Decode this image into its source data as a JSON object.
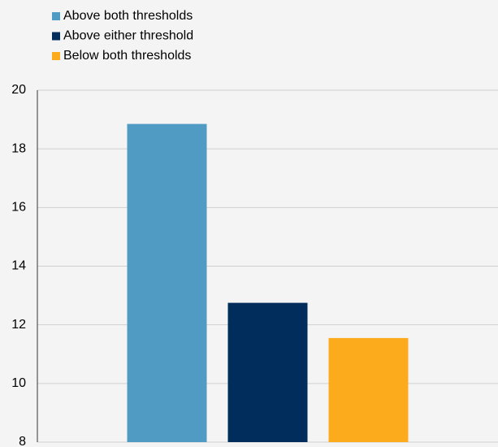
{
  "chart_data": {
    "type": "bar",
    "categories": [
      null
    ],
    "series": [
      {
        "name": "Above both thresholds",
        "color": "#4f9bc4",
        "values": [
          18.85
        ]
      },
      {
        "name": "Above either threshold",
        "color": "#002d5c",
        "values": [
          12.75
        ]
      },
      {
        "name": "Below both thresholds",
        "color": "#fbab1b",
        "values": [
          11.55
        ]
      }
    ],
    "ylim": [
      8,
      20
    ],
    "yticks": [
      8,
      10,
      12,
      14,
      16,
      18,
      20
    ],
    "grid": true,
    "legend": "top-left"
  }
}
